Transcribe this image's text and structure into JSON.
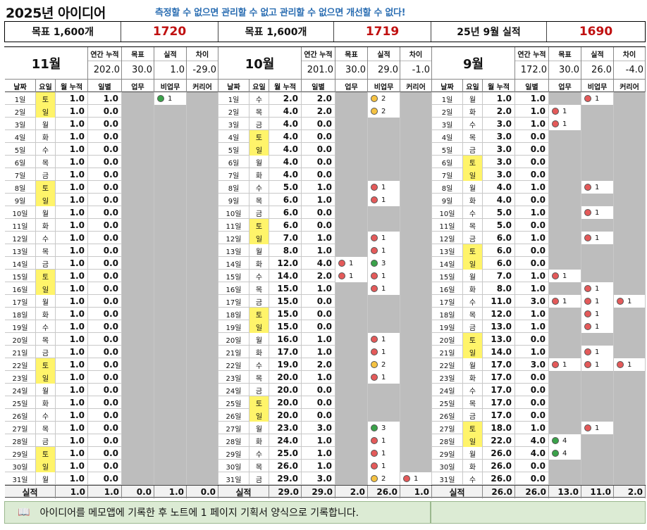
{
  "title": "2025년 아이디어",
  "slogan": "측정할 수 없으면 관리할 수 없고 관리할 수 없으면 개선할 수 없다!",
  "header": [
    {
      "label": "목표 1,600개",
      "value": "1720"
    },
    {
      "label": "목표 1,600개",
      "value": "1719"
    },
    {
      "label": "25년 9월 실적",
      "value": "1690"
    }
  ],
  "col_headers": {
    "date": "날짜",
    "weekday": "요일",
    "monthly_cum": "월 누적",
    "daily": "일별",
    "work": "업무",
    "nonwork": "비업무",
    "career": "커리어"
  },
  "stat_labels": {
    "annual_cum": "연간 누적",
    "target": "목표",
    "actual": "실적",
    "diff": "차이"
  },
  "footer_label": "실적",
  "note": {
    "icon": "book-icon",
    "text": "아이디어를 메모앱에 기록한 후 노트에 1 페이지 기획서 양식으로 기록합니다."
  },
  "colors": {
    "accent": "#2a6db2",
    "value_red": "#c01010",
    "weekend": "#fff46a",
    "empty": "#bdbdbd",
    "note_bg": "#dcebd4"
  },
  "months": [
    {
      "name": "11월",
      "stats": {
        "annual": "202.0",
        "target": "30.0",
        "actual": "1.0",
        "diff": "-29.0"
      },
      "days": [
        [
          "1일",
          "토",
          true,
          "1.0",
          "1.0",
          null,
          {
            "c": "green",
            "t": "1"
          },
          null
        ],
        [
          "2일",
          "일",
          true,
          "1.0",
          "0.0",
          null,
          null,
          null
        ],
        [
          "3일",
          "월",
          false,
          "1.0",
          "0.0",
          null,
          null,
          null
        ],
        [
          "4일",
          "화",
          false,
          "1.0",
          "0.0",
          null,
          null,
          null
        ],
        [
          "5일",
          "수",
          false,
          "1.0",
          "0.0",
          null,
          null,
          null
        ],
        [
          "6일",
          "목",
          false,
          "1.0",
          "0.0",
          null,
          null,
          null
        ],
        [
          "7일",
          "금",
          false,
          "1.0",
          "0.0",
          null,
          null,
          null
        ],
        [
          "8일",
          "토",
          true,
          "1.0",
          "0.0",
          null,
          null,
          null
        ],
        [
          "9일",
          "일",
          true,
          "1.0",
          "0.0",
          null,
          null,
          null
        ],
        [
          "10일",
          "월",
          false,
          "1.0",
          "0.0",
          null,
          null,
          null
        ],
        [
          "11일",
          "화",
          false,
          "1.0",
          "0.0",
          null,
          null,
          null
        ],
        [
          "12일",
          "수",
          false,
          "1.0",
          "0.0",
          null,
          null,
          null
        ],
        [
          "13일",
          "목",
          false,
          "1.0",
          "0.0",
          null,
          null,
          null
        ],
        [
          "14일",
          "금",
          false,
          "1.0",
          "0.0",
          null,
          null,
          null
        ],
        [
          "15일",
          "토",
          true,
          "1.0",
          "0.0",
          null,
          null,
          null
        ],
        [
          "16일",
          "일",
          true,
          "1.0",
          "0.0",
          null,
          null,
          null
        ],
        [
          "17일",
          "월",
          false,
          "1.0",
          "0.0",
          null,
          null,
          null
        ],
        [
          "18일",
          "화",
          false,
          "1.0",
          "0.0",
          null,
          null,
          null
        ],
        [
          "19일",
          "수",
          false,
          "1.0",
          "0.0",
          null,
          null,
          null
        ],
        [
          "20일",
          "목",
          false,
          "1.0",
          "0.0",
          null,
          null,
          null
        ],
        [
          "21일",
          "금",
          false,
          "1.0",
          "0.0",
          null,
          null,
          null
        ],
        [
          "22일",
          "토",
          true,
          "1.0",
          "0.0",
          null,
          null,
          null
        ],
        [
          "23일",
          "일",
          true,
          "1.0",
          "0.0",
          null,
          null,
          null
        ],
        [
          "24일",
          "월",
          false,
          "1.0",
          "0.0",
          null,
          null,
          null
        ],
        [
          "25일",
          "화",
          false,
          "1.0",
          "0.0",
          null,
          null,
          null
        ],
        [
          "26일",
          "수",
          false,
          "1.0",
          "0.0",
          null,
          null,
          null
        ],
        [
          "27일",
          "목",
          false,
          "1.0",
          "0.0",
          null,
          null,
          null
        ],
        [
          "28일",
          "금",
          false,
          "1.0",
          "0.0",
          null,
          null,
          null
        ],
        [
          "29일",
          "토",
          true,
          "1.0",
          "0.0",
          null,
          null,
          null
        ],
        [
          "30일",
          "일",
          true,
          "1.0",
          "0.0",
          null,
          null,
          null
        ],
        [
          "31일",
          "월",
          false,
          "1.0",
          "0.0",
          null,
          null,
          null
        ]
      ],
      "footer": [
        "1.0",
        "1.0",
        "0.0",
        "1.0",
        "0.0"
      ]
    },
    {
      "name": "10월",
      "stats": {
        "annual": "201.0",
        "target": "30.0",
        "actual": "29.0",
        "diff": "-1.0"
      },
      "days": [
        [
          "1일",
          "수",
          false,
          "2.0",
          "2.0",
          null,
          {
            "c": "yellow",
            "t": "2"
          },
          null
        ],
        [
          "2일",
          "목",
          false,
          "4.0",
          "2.0",
          null,
          {
            "c": "yellow",
            "t": "2"
          },
          null
        ],
        [
          "3일",
          "금",
          false,
          "4.0",
          "0.0",
          null,
          null,
          null
        ],
        [
          "4일",
          "토",
          true,
          "4.0",
          "0.0",
          null,
          null,
          null
        ],
        [
          "5일",
          "일",
          true,
          "4.0",
          "0.0",
          null,
          null,
          null
        ],
        [
          "6일",
          "월",
          false,
          "4.0",
          "0.0",
          null,
          null,
          null
        ],
        [
          "7일",
          "화",
          false,
          "4.0",
          "0.0",
          null,
          null,
          null
        ],
        [
          "8일",
          "수",
          false,
          "5.0",
          "1.0",
          null,
          {
            "c": "red",
            "t": "1"
          },
          null
        ],
        [
          "9일",
          "목",
          false,
          "6.0",
          "1.0",
          null,
          {
            "c": "red",
            "t": "1"
          },
          null
        ],
        [
          "10일",
          "금",
          false,
          "6.0",
          "0.0",
          null,
          null,
          null
        ],
        [
          "11일",
          "토",
          true,
          "6.0",
          "0.0",
          null,
          null,
          null
        ],
        [
          "12일",
          "일",
          true,
          "7.0",
          "1.0",
          null,
          {
            "c": "red",
            "t": "1"
          },
          null
        ],
        [
          "13일",
          "월",
          false,
          "8.0",
          "1.0",
          null,
          {
            "c": "red",
            "t": "1"
          },
          null
        ],
        [
          "14일",
          "화",
          false,
          "12.0",
          "4.0",
          {
            "c": "red",
            "t": "1"
          },
          {
            "c": "green",
            "t": "3"
          },
          null
        ],
        [
          "15일",
          "수",
          false,
          "14.0",
          "2.0",
          {
            "c": "red",
            "t": "1"
          },
          {
            "c": "red",
            "t": "1"
          },
          null
        ],
        [
          "16일",
          "목",
          false,
          "15.0",
          "1.0",
          null,
          {
            "c": "red",
            "t": "1"
          },
          null
        ],
        [
          "17일",
          "금",
          false,
          "15.0",
          "0.0",
          null,
          null,
          null
        ],
        [
          "18일",
          "토",
          true,
          "15.0",
          "0.0",
          null,
          null,
          null
        ],
        [
          "19일",
          "일",
          true,
          "15.0",
          "0.0",
          null,
          null,
          null
        ],
        [
          "20일",
          "월",
          false,
          "16.0",
          "1.0",
          null,
          {
            "c": "red",
            "t": "1"
          },
          null
        ],
        [
          "21일",
          "화",
          false,
          "17.0",
          "1.0",
          null,
          {
            "c": "red",
            "t": "1"
          },
          null
        ],
        [
          "22일",
          "수",
          false,
          "19.0",
          "2.0",
          null,
          {
            "c": "yellow",
            "t": "2"
          },
          null
        ],
        [
          "23일",
          "목",
          false,
          "20.0",
          "1.0",
          null,
          {
            "c": "red",
            "t": "1"
          },
          null
        ],
        [
          "24일",
          "금",
          false,
          "20.0",
          "0.0",
          null,
          null,
          null
        ],
        [
          "25일",
          "토",
          true,
          "20.0",
          "0.0",
          null,
          null,
          null
        ],
        [
          "26일",
          "일",
          true,
          "20.0",
          "0.0",
          null,
          null,
          null
        ],
        [
          "27일",
          "월",
          false,
          "23.0",
          "3.0",
          null,
          {
            "c": "green",
            "t": "3"
          },
          null
        ],
        [
          "28일",
          "화",
          false,
          "24.0",
          "1.0",
          null,
          {
            "c": "red",
            "t": "1"
          },
          null
        ],
        [
          "29일",
          "수",
          false,
          "25.0",
          "1.0",
          null,
          {
            "c": "red",
            "t": "1"
          },
          null
        ],
        [
          "30일",
          "목",
          false,
          "26.0",
          "1.0",
          null,
          {
            "c": "red",
            "t": "1"
          },
          null
        ],
        [
          "31일",
          "금",
          false,
          "29.0",
          "3.0",
          null,
          {
            "c": "yellow",
            "t": "2"
          },
          {
            "c": "red",
            "t": "1"
          }
        ]
      ],
      "footer": [
        "29.0",
        "29.0",
        "2.0",
        "26.0",
        "1.0"
      ]
    },
    {
      "name": "9월",
      "stats": {
        "annual": "172.0",
        "target": "30.0",
        "actual": "26.0",
        "diff": "-4.0"
      },
      "days": [
        [
          "1일",
          "월",
          false,
          "1.0",
          "1.0",
          null,
          {
            "c": "red",
            "t": "1"
          },
          null
        ],
        [
          "2일",
          "화",
          false,
          "2.0",
          "1.0",
          {
            "c": "red",
            "t": "1"
          },
          null,
          null
        ],
        [
          "3일",
          "수",
          false,
          "3.0",
          "1.0",
          {
            "c": "red",
            "t": "1"
          },
          null,
          null
        ],
        [
          "4일",
          "목",
          false,
          "3.0",
          "0.0",
          null,
          null,
          null
        ],
        [
          "5일",
          "금",
          false,
          "3.0",
          "0.0",
          null,
          null,
          null
        ],
        [
          "6일",
          "토",
          true,
          "3.0",
          "0.0",
          null,
          null,
          null
        ],
        [
          "7일",
          "일",
          true,
          "3.0",
          "0.0",
          null,
          null,
          null
        ],
        [
          "8일",
          "월",
          false,
          "4.0",
          "1.0",
          null,
          {
            "c": "red",
            "t": "1"
          },
          null
        ],
        [
          "9일",
          "화",
          false,
          "4.0",
          "0.0",
          null,
          null,
          null
        ],
        [
          "10일",
          "수",
          false,
          "5.0",
          "1.0",
          null,
          {
            "c": "red",
            "t": "1"
          },
          null
        ],
        [
          "11일",
          "목",
          false,
          "5.0",
          "0.0",
          null,
          null,
          null
        ],
        [
          "12일",
          "금",
          false,
          "6.0",
          "1.0",
          null,
          {
            "c": "red",
            "t": "1"
          },
          null
        ],
        [
          "13일",
          "토",
          true,
          "6.0",
          "0.0",
          null,
          null,
          null
        ],
        [
          "14일",
          "일",
          true,
          "6.0",
          "0.0",
          null,
          null,
          null
        ],
        [
          "15일",
          "월",
          false,
          "7.0",
          "1.0",
          {
            "c": "red",
            "t": "1"
          },
          null,
          null
        ],
        [
          "16일",
          "화",
          false,
          "8.0",
          "1.0",
          null,
          {
            "c": "red",
            "t": "1"
          },
          null
        ],
        [
          "17일",
          "수",
          false,
          "11.0",
          "3.0",
          {
            "c": "red",
            "t": "1"
          },
          {
            "c": "red",
            "t": "1"
          },
          {
            "c": "red",
            "t": "1"
          }
        ],
        [
          "18일",
          "목",
          false,
          "12.0",
          "1.0",
          null,
          {
            "c": "red",
            "t": "1"
          },
          null
        ],
        [
          "19일",
          "금",
          false,
          "13.0",
          "1.0",
          null,
          {
            "c": "red",
            "t": "1"
          },
          null
        ],
        [
          "20일",
          "토",
          true,
          "13.0",
          "0.0",
          null,
          null,
          null
        ],
        [
          "21일",
          "일",
          true,
          "14.0",
          "1.0",
          null,
          {
            "c": "red",
            "t": "1"
          },
          null
        ],
        [
          "22일",
          "월",
          false,
          "17.0",
          "3.0",
          {
            "c": "red",
            "t": "1"
          },
          {
            "c": "red",
            "t": "1"
          },
          {
            "c": "red",
            "t": "1"
          }
        ],
        [
          "23일",
          "화",
          false,
          "17.0",
          "0.0",
          null,
          null,
          null
        ],
        [
          "24일",
          "수",
          false,
          "17.0",
          "0.0",
          null,
          null,
          null
        ],
        [
          "25일",
          "목",
          false,
          "17.0",
          "0.0",
          null,
          null,
          null
        ],
        [
          "26일",
          "금",
          false,
          "17.0",
          "0.0",
          null,
          null,
          null
        ],
        [
          "27일",
          "토",
          true,
          "18.0",
          "1.0",
          null,
          {
            "c": "red",
            "t": "1"
          },
          null
        ],
        [
          "28일",
          "일",
          true,
          "22.0",
          "4.0",
          {
            "c": "green",
            "t": "4"
          },
          null,
          null
        ],
        [
          "29일",
          "월",
          false,
          "26.0",
          "4.0",
          {
            "c": "green",
            "t": "4"
          },
          null,
          null
        ],
        [
          "30일",
          "화",
          false,
          "26.0",
          "0.0",
          null,
          null,
          null
        ],
        [
          "31일",
          "수",
          false,
          "26.0",
          "0.0",
          null,
          null,
          null
        ]
      ],
      "footer": [
        "26.0",
        "26.0",
        "13.0",
        "11.0",
        "2.0"
      ]
    }
  ]
}
